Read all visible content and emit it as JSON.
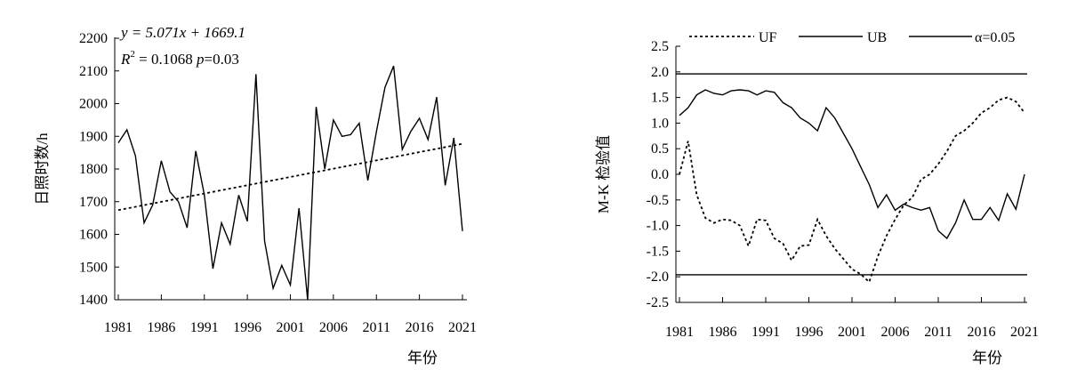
{
  "chart_data": [
    {
      "type": "line",
      "xlabel": "年份",
      "ylabel": "日照时数/h",
      "xlim": [
        1981,
        2021
      ],
      "ylim": [
        1400,
        2200
      ],
      "x_ticks": [
        1981,
        1986,
        1991,
        1996,
        2001,
        2006,
        2011,
        2016,
        2021
      ],
      "y_ticks": [
        1400,
        1500,
        1600,
        1700,
        1800,
        1900,
        2000,
        2100,
        2200
      ],
      "annotation": {
        "equation": "y = 5.071x + 1669.1",
        "r2_prefix": "R",
        "r2_exp": "2",
        "r2_value": " = 0.1068 ",
        "p_text": "p",
        "p_value": "=0.03"
      },
      "series": [
        {
          "style": "solid",
          "x": [
            1981,
            1982,
            1983,
            1984,
            1985,
            1986,
            1987,
            1988,
            1989,
            1990,
            1991,
            1992,
            1993,
            1994,
            1995,
            1996,
            1997,
            1998,
            1999,
            2000,
            2001,
            2002,
            2003,
            2004,
            2005,
            2006,
            2007,
            2008,
            2009,
            2010,
            2011,
            2012,
            2013,
            2014,
            2015,
            2016,
            2017,
            2018,
            2019,
            2020,
            2021
          ],
          "values": [
            1880,
            1920,
            1840,
            1635,
            1690,
            1825,
            1730,
            1700,
            1620,
            1855,
            1720,
            1495,
            1635,
            1570,
            1720,
            1640,
            2090,
            1580,
            1435,
            1505,
            1445,
            1680,
            1400,
            1990,
            1800,
            1950,
            1900,
            1905,
            1940,
            1765,
            1915,
            2050,
            2115,
            1860,
            1915,
            1955,
            1890,
            2020,
            1750,
            1895,
            1610
          ]
        },
        {
          "style": "dashed",
          "type": "trend",
          "x": [
            1981,
            2021
          ],
          "values": [
            1674.2,
            1877.0
          ]
        }
      ]
    },
    {
      "type": "line",
      "xlabel": "年份",
      "ylabel": "M-K 检验值",
      "xlim": [
        1981,
        2021
      ],
      "ylim": [
        -2.5,
        2.5
      ],
      "x_ticks": [
        1981,
        1986,
        1991,
        1996,
        2001,
        2006,
        2011,
        2016,
        2021
      ],
      "y_ticks": [
        -2.5,
        -2.0,
        -1.5,
        -1.0,
        -0.5,
        0.0,
        0.5,
        1.0,
        1.5,
        2.0,
        2.5
      ],
      "y_tick_labels": [
        "-2.5",
        "-2.0",
        "-1.5",
        "-1.0",
        "-0.5",
        "0.0",
        "0.5",
        "1.0",
        "1.5",
        "2.0",
        "2.5"
      ],
      "legend": [
        "UF",
        "UB",
        "α=0.05"
      ],
      "legend_position": "top",
      "series": [
        {
          "name": "UF",
          "style": "dotted",
          "x": [
            1981,
            1982,
            1983,
            1984,
            1985,
            1986,
            1987,
            1988,
            1989,
            1990,
            1991,
            1992,
            1993,
            1994,
            1995,
            1996,
            1997,
            1998,
            1999,
            2000,
            2001,
            2002,
            2003,
            2004,
            2005,
            2006,
            2007,
            2008,
            2009,
            2010,
            2011,
            2012,
            2013,
            2014,
            2015,
            2016,
            2017,
            2018,
            2019,
            2020,
            2021
          ],
          "values": [
            0.0,
            0.65,
            -0.4,
            -0.85,
            -0.95,
            -0.88,
            -0.9,
            -1.0,
            -1.4,
            -0.88,
            -0.9,
            -1.25,
            -1.35,
            -1.68,
            -1.4,
            -1.38,
            -0.88,
            -1.2,
            -1.45,
            -1.65,
            -1.85,
            -1.95,
            -2.1,
            -1.6,
            -1.2,
            -0.88,
            -0.6,
            -0.45,
            -0.1,
            0.0,
            0.2,
            0.45,
            0.75,
            0.85,
            1.0,
            1.2,
            1.3,
            1.45,
            1.5,
            1.42,
            1.2
          ]
        },
        {
          "name": "UB",
          "style": "solid",
          "x": [
            1981,
            1982,
            1983,
            1984,
            1985,
            1986,
            1987,
            1988,
            1989,
            1990,
            1991,
            1992,
            1993,
            1994,
            1995,
            1996,
            1997,
            1998,
            1999,
            2000,
            2001,
            2002,
            2003,
            2004,
            2005,
            2006,
            2007,
            2008,
            2009,
            2010,
            2011,
            2012,
            2013,
            2014,
            2015,
            2016,
            2017,
            2018,
            2019,
            2020,
            2021
          ],
          "values": [
            1.15,
            1.3,
            1.55,
            1.65,
            1.58,
            1.55,
            1.63,
            1.65,
            1.63,
            1.55,
            1.63,
            1.6,
            1.4,
            1.3,
            1.1,
            1.0,
            0.85,
            1.3,
            1.1,
            0.8,
            0.5,
            0.15,
            -0.2,
            -0.65,
            -0.4,
            -0.7,
            -0.58,
            -0.65,
            -0.7,
            -0.65,
            -1.1,
            -1.25,
            -0.95,
            -0.5,
            -0.88,
            -0.88,
            -0.65,
            -0.9,
            -0.38,
            -0.68,
            0.0
          ]
        },
        {
          "name": "α=0.05",
          "style": "solid",
          "type": "threshold",
          "values": [
            1.96,
            -1.96
          ]
        }
      ]
    }
  ]
}
